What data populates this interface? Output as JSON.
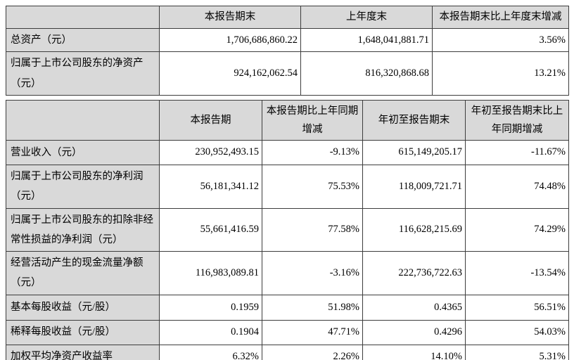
{
  "colors": {
    "header_background": "#d9d9d9",
    "label_background": "#d9d9d9",
    "cell_background": "#ffffff",
    "border": "#3d3d3d",
    "text": "#000000"
  },
  "table1": {
    "headers": [
      "",
      "本报告期末",
      "上年度末",
      "本报告期末比上年度末增减"
    ],
    "rows": [
      {
        "label": "总资产（元）",
        "values": [
          "1,706,686,860.22",
          "1,648,041,881.71",
          "3.56%"
        ]
      },
      {
        "label": "归属于上市公司股东的净资产（元）",
        "values": [
          "924,162,062.54",
          "816,320,868.68",
          "13.21%"
        ]
      }
    ]
  },
  "table2": {
    "headers": [
      "",
      "本报告期",
      "本报告期比上年同期增减",
      "年初至报告期末",
      "年初至报告期末比上年同期增减"
    ],
    "rows": [
      {
        "label": "营业收入（元）",
        "values": [
          "230,952,493.15",
          "-9.13%",
          "615,149,205.17",
          "-11.67%"
        ]
      },
      {
        "label": "归属于上市公司股东的净利润（元）",
        "values": [
          "56,181,341.12",
          "75.53%",
          "118,009,721.71",
          "74.48%"
        ]
      },
      {
        "label": "归属于上市公司股东的扣除非经常性损益的净利润（元）",
        "values": [
          "55,661,416.59",
          "77.58%",
          "116,628,215.69",
          "74.29%"
        ]
      },
      {
        "label": "经营活动产生的现金流量净额（元）",
        "values": [
          "116,983,089.81",
          "-3.16%",
          "222,736,722.63",
          "-13.54%"
        ]
      },
      {
        "label": "基本每股收益（元/股）",
        "values": [
          "0.1959",
          "51.98%",
          "0.4365",
          "56.51%"
        ]
      },
      {
        "label": "稀释每股收益（元/股）",
        "values": [
          "0.1904",
          "47.71%",
          "0.4296",
          "54.03%"
        ]
      },
      {
        "label": "加权平均净资产收益率",
        "values": [
          "6.32%",
          "2.26%",
          "14.10%",
          "5.31%"
        ]
      }
    ]
  }
}
